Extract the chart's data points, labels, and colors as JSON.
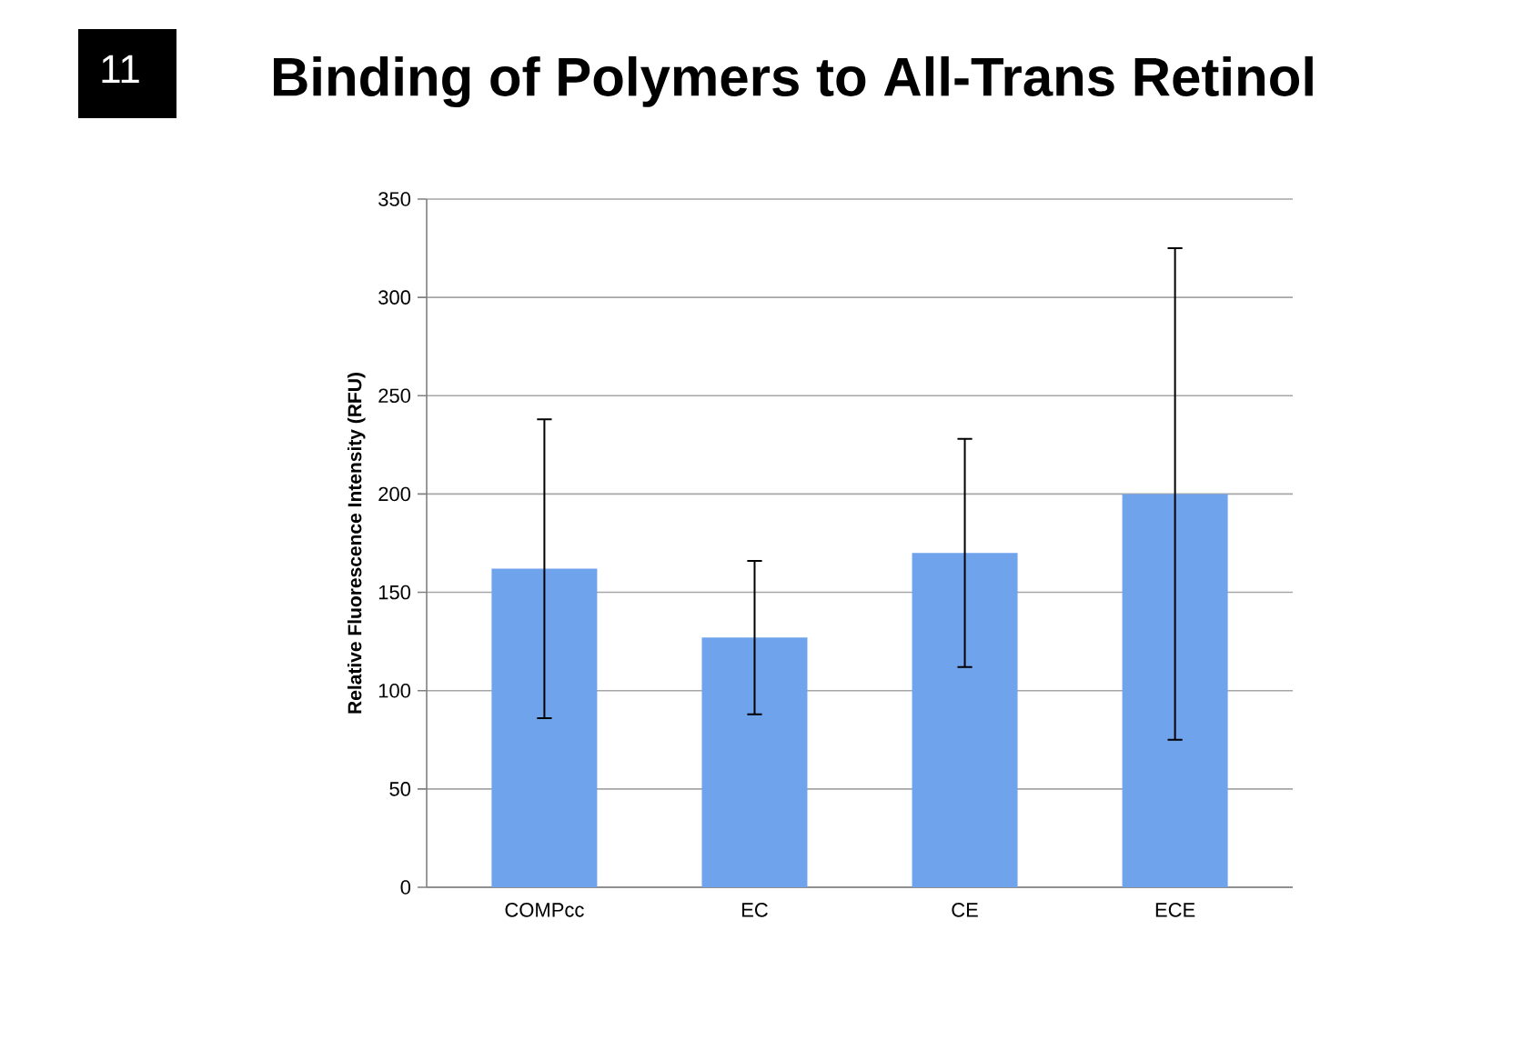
{
  "chart_data": {
    "type": "bar",
    "title": "Binding of Polymers to All-Trans Retinol",
    "ylabel": "Relative Fluorescence Intensity (RFU)",
    "annotations": [
      "11"
    ],
    "categories": [
      "COMPcc",
      "EC",
      "CE",
      "ECE"
    ],
    "values": [
      162,
      127,
      170,
      200
    ],
    "errors": [
      76,
      39,
      58,
      125
    ],
    "color": "#6fa3ec",
    "ylim": [
      0,
      350
    ],
    "yticks": [
      0,
      50,
      100,
      150,
      200,
      250,
      300,
      350
    ],
    "grid": "y"
  }
}
